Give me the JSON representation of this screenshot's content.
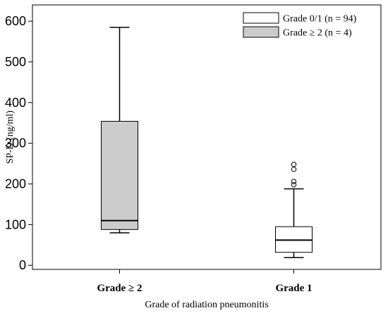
{
  "chart_data": {
    "type": "box",
    "xlabel": "Grade of radiation pneumonitis",
    "ylabel": "SP-D (ng/ml)",
    "ylim": [
      -10,
      640
    ],
    "yticks": [
      0,
      100,
      200,
      300,
      400,
      500,
      600
    ],
    "grid": false,
    "legend_position": "top-right",
    "legend": [
      {
        "label": "Grade 0/1 (n = 94)",
        "color": "#ffffff"
      },
      {
        "label": "Grade ≥ 2 (n = 4)",
        "color": "#cccccc"
      }
    ],
    "categories": [
      "Grade ≥ 2",
      "Grade 1"
    ],
    "boxes": [
      {
        "category": "Grade ≥ 2",
        "min": 80,
        "q1": 88,
        "median": 110,
        "q3": 354,
        "max": 585,
        "outliers": [],
        "color": "#cccccc"
      },
      {
        "category": "Grade 1",
        "min": 19,
        "q1": 32,
        "median": 62,
        "q3": 95,
        "max": 188,
        "outliers": [
          198,
          206,
          236,
          248
        ],
        "color": "#ffffff"
      }
    ]
  }
}
